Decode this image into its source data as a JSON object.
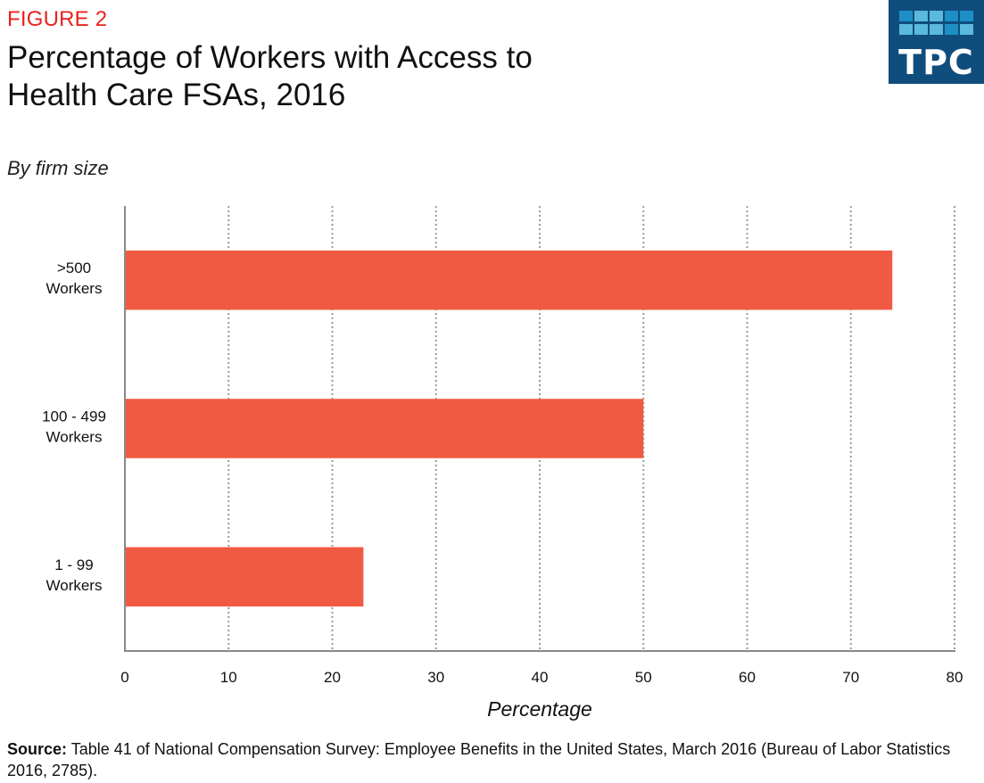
{
  "header": {
    "figure_label": "FIGURE 2",
    "title_line1": "Percentage of Workers with Access to",
    "title_line2": "Health Care FSAs, 2016",
    "subtitle": "By firm size"
  },
  "logo": {
    "text": "TPC",
    "background": "#0f4d7d",
    "tile_colors": [
      "#1d8fc4",
      "#5ab9dd",
      "#5ab9dd",
      "#1d8fc4",
      "#1d8fc4",
      "#5ab9dd",
      "#5ab9dd",
      "#5ab9dd",
      "#1d8fc4",
      "#5ab9dd"
    ]
  },
  "chart_data": {
    "type": "bar",
    "orientation": "horizontal",
    "title": "Percentage of Workers with Access to Health Care FSAs, 2016",
    "subtitle": "By firm size",
    "categories": [
      ">500 Workers",
      "100 - 499 Workers",
      "1 - 99 Workers"
    ],
    "category_lines": [
      [
        ">500",
        "Workers"
      ],
      [
        "100 - 499",
        "Workers"
      ],
      [
        "1 - 99",
        "Workers"
      ]
    ],
    "values": [
      74,
      50,
      23
    ],
    "xlabel": "Percentage",
    "ylabel": "",
    "xlim": [
      0,
      80
    ],
    "xticks": [
      0,
      10,
      20,
      30,
      40,
      50,
      60,
      70,
      80
    ],
    "grid": "vertical dotted",
    "legend": "none",
    "bar_color": "#f15a42"
  },
  "footer": {
    "source_label": "Source:",
    "source_text": " Table 41 of National Compensation Survey: Employee Benefits in the United States, March 2016 (Bureau of Labor Statistics 2016, 2785)."
  }
}
